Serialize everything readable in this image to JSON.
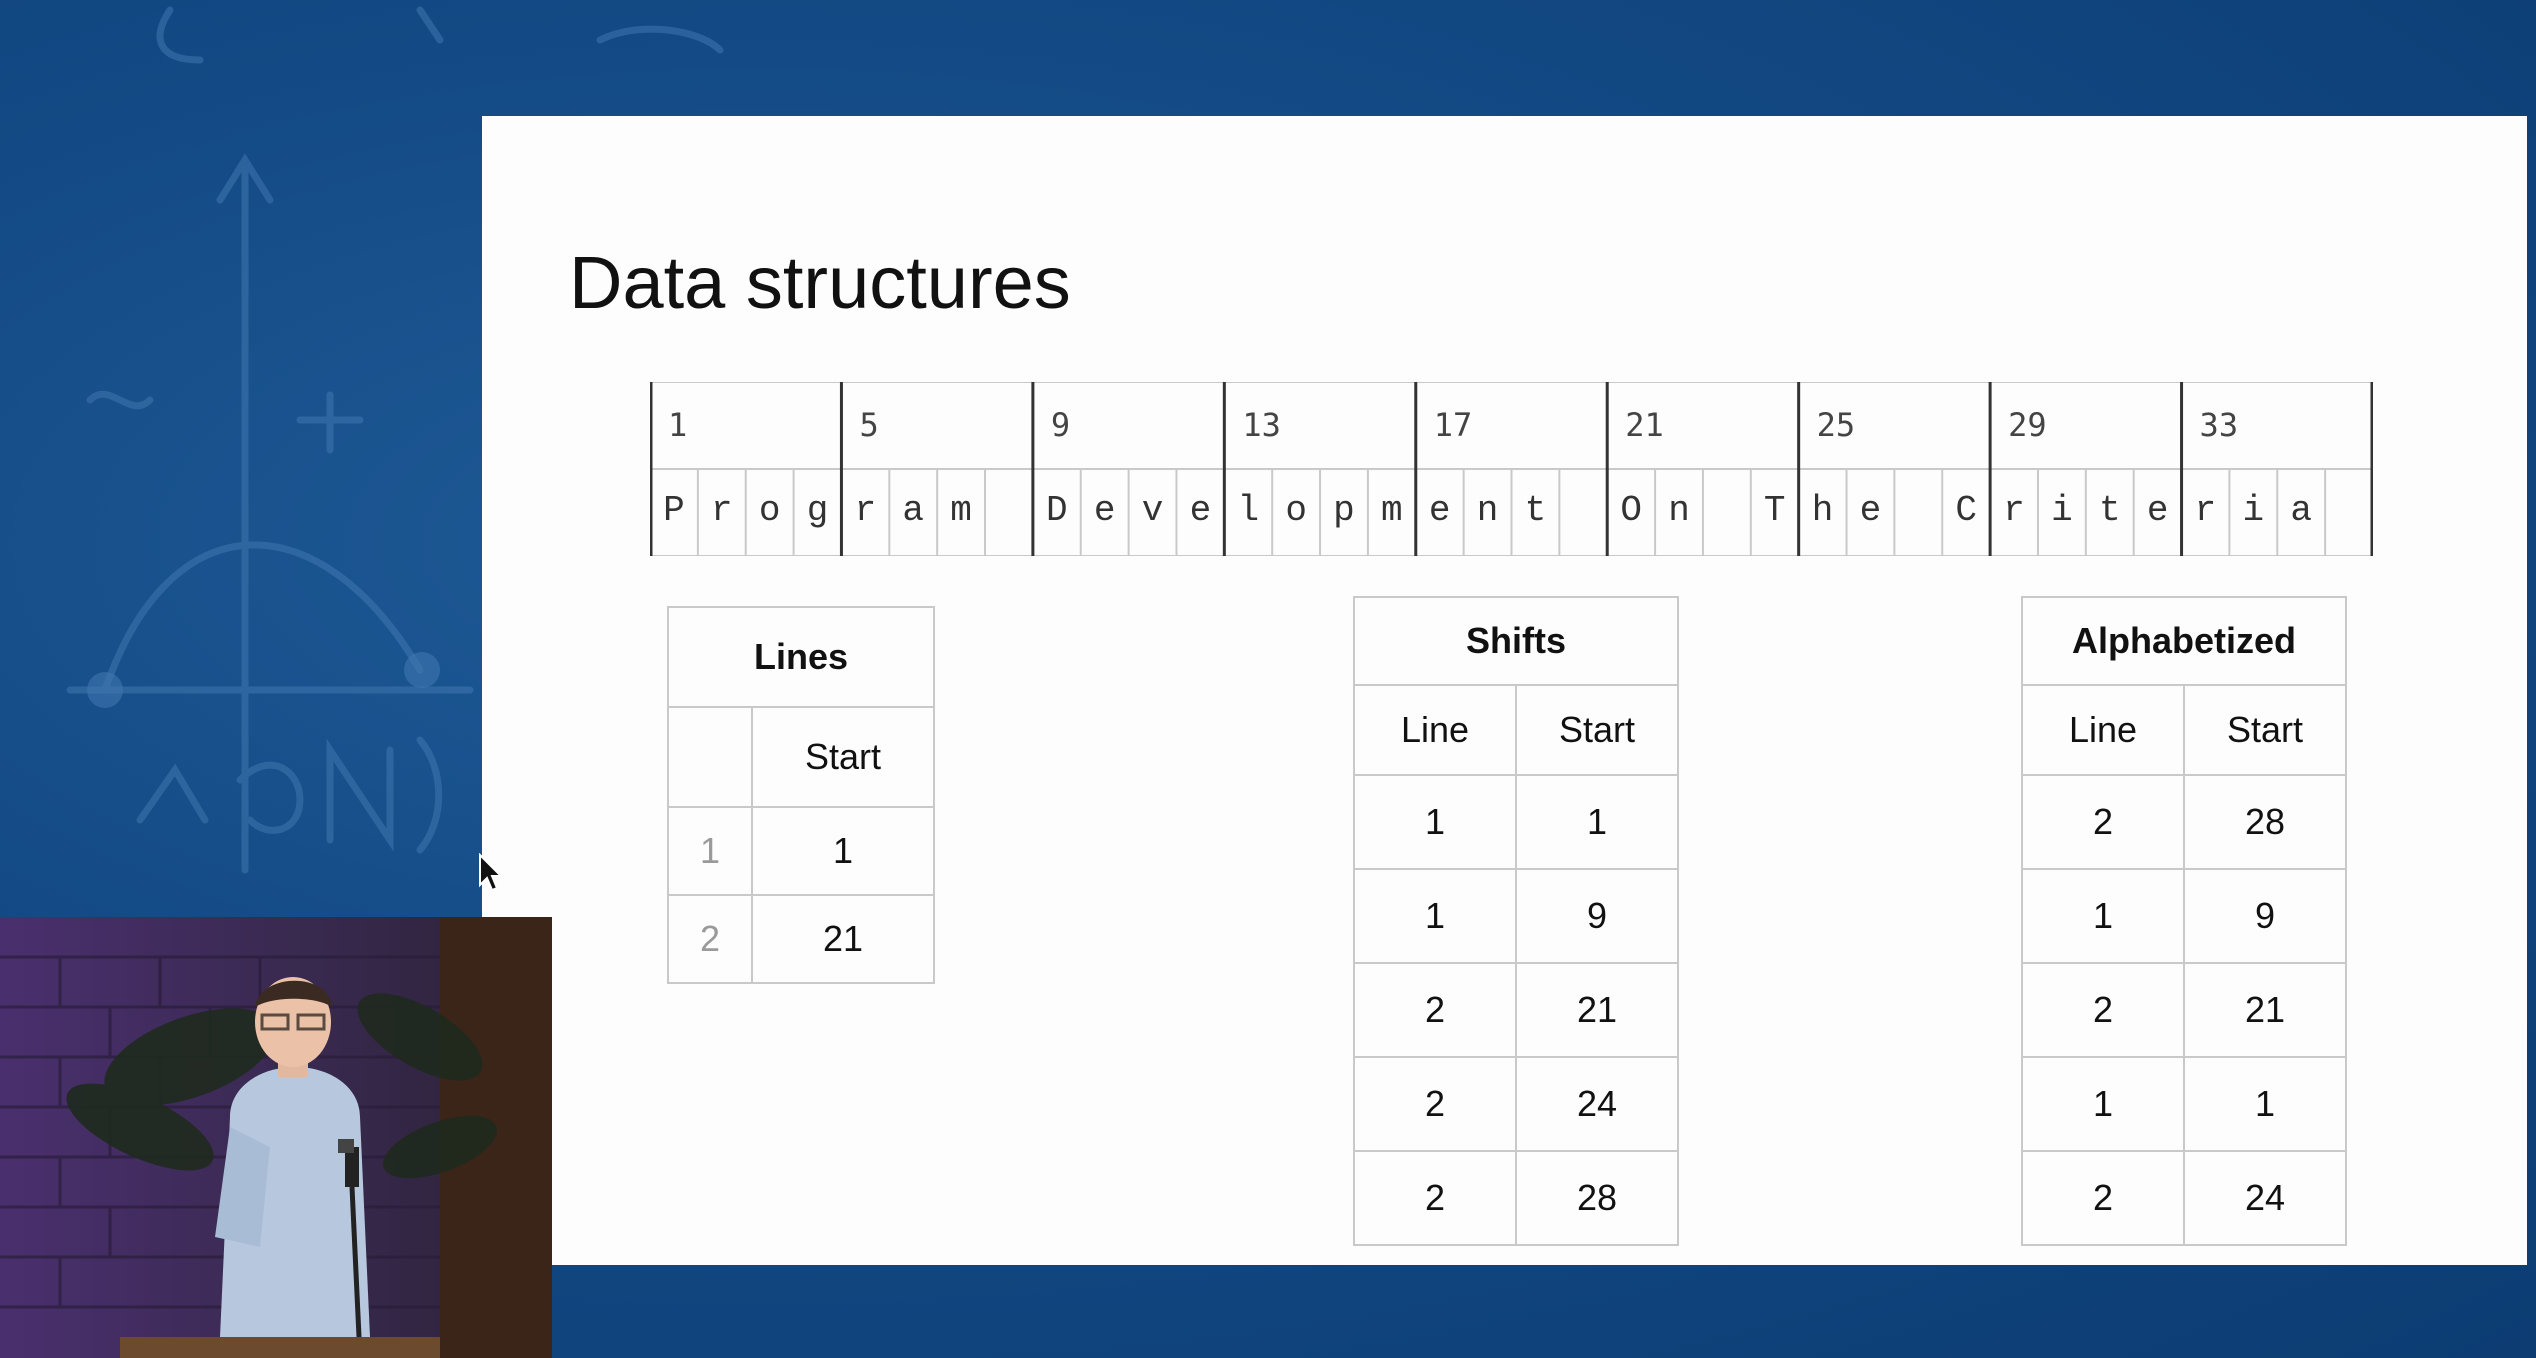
{
  "slide": {
    "title": "Data structures"
  },
  "memory": {
    "indices": [
      "1",
      "5",
      "9",
      "13",
      "17",
      "21",
      "25",
      "29",
      "33"
    ],
    "chars": [
      "P",
      "r",
      "o",
      "g",
      "r",
      "a",
      "m",
      " ",
      "D",
      "e",
      "v",
      "e",
      "l",
      "o",
      "p",
      "m",
      "e",
      "n",
      "t",
      " ",
      "O",
      "n",
      " ",
      "T",
      "h",
      "e",
      " ",
      "C",
      "r",
      "i",
      "t",
      "e",
      "r",
      "i",
      "a",
      " "
    ]
  },
  "lines_table": {
    "title": "Lines",
    "header": [
      "",
      "Start"
    ],
    "rows": [
      [
        "1",
        "1"
      ],
      [
        "2",
        "21"
      ]
    ]
  },
  "shifts_table": {
    "title": "Shifts",
    "header": [
      "Line",
      "Start"
    ],
    "rows": [
      [
        "1",
        "1"
      ],
      [
        "1",
        "9"
      ],
      [
        "2",
        "21"
      ],
      [
        "2",
        "24"
      ],
      [
        "2",
        "28"
      ]
    ]
  },
  "alpha_table": {
    "title": "Alphabetized",
    "header": [
      "Line",
      "Start"
    ],
    "rows": [
      [
        "2",
        "28"
      ],
      [
        "1",
        "9"
      ],
      [
        "2",
        "21"
      ],
      [
        "1",
        "1"
      ],
      [
        "2",
        "24"
      ]
    ]
  },
  "colors": {
    "background": "#134a85",
    "slide": "#fdfdfd",
    "grid": "#c9c9c9"
  }
}
